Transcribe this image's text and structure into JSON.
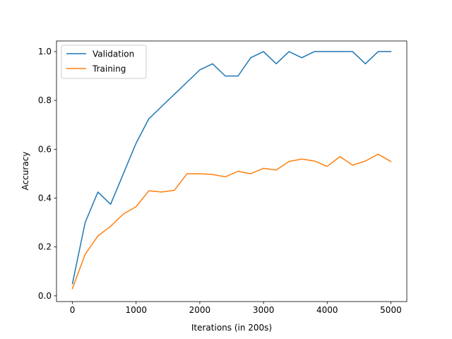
{
  "chart_data": {
    "type": "line",
    "title": "",
    "xlabel": "Iterations (in 200s)",
    "ylabel": "Accuracy",
    "xlim": [
      -250,
      5250
    ],
    "ylim": [
      -0.0235,
      1.0435
    ],
    "xticks": [
      0,
      1000,
      2000,
      3000,
      4000,
      5000
    ],
    "yticks": [
      0.0,
      0.2,
      0.4,
      0.6,
      0.8,
      1.0
    ],
    "xtick_labels": [
      "0",
      "1000",
      "2000",
      "3000",
      "4000",
      "5000"
    ],
    "ytick_labels": [
      "0.0",
      "0.2",
      "0.4",
      "0.6",
      "0.8",
      "1.0"
    ],
    "grid": false,
    "legend_position": "top-left",
    "x": [
      0,
      200,
      400,
      600,
      800,
      1000,
      1200,
      1400,
      1600,
      1800,
      2000,
      2200,
      2400,
      2600,
      2800,
      3000,
      3200,
      3400,
      3600,
      3800,
      4000,
      4200,
      4400,
      4600,
      4800,
      5000
    ],
    "series": [
      {
        "name": "Validation",
        "color": "#1f77b4",
        "values": [
          0.05,
          0.3,
          0.425,
          0.375,
          0.5,
          0.625,
          0.725,
          0.775,
          0.825,
          0.875,
          0.925,
          0.95,
          0.9,
          0.9,
          0.975,
          1.0,
          0.95,
          1.0,
          0.975,
          1.0,
          1.0,
          1.0,
          1.0,
          0.95,
          1.0,
          1.0
        ]
      },
      {
        "name": "Training",
        "color": "#ff7f0e",
        "values": [
          0.03,
          0.17,
          0.245,
          0.285,
          0.335,
          0.365,
          0.43,
          0.425,
          0.432,
          0.5,
          0.5,
          0.497,
          0.487,
          0.51,
          0.5,
          0.522,
          0.515,
          0.55,
          0.56,
          0.552,
          0.53,
          0.57,
          0.535,
          0.552,
          0.58,
          0.55
        ]
      }
    ]
  }
}
